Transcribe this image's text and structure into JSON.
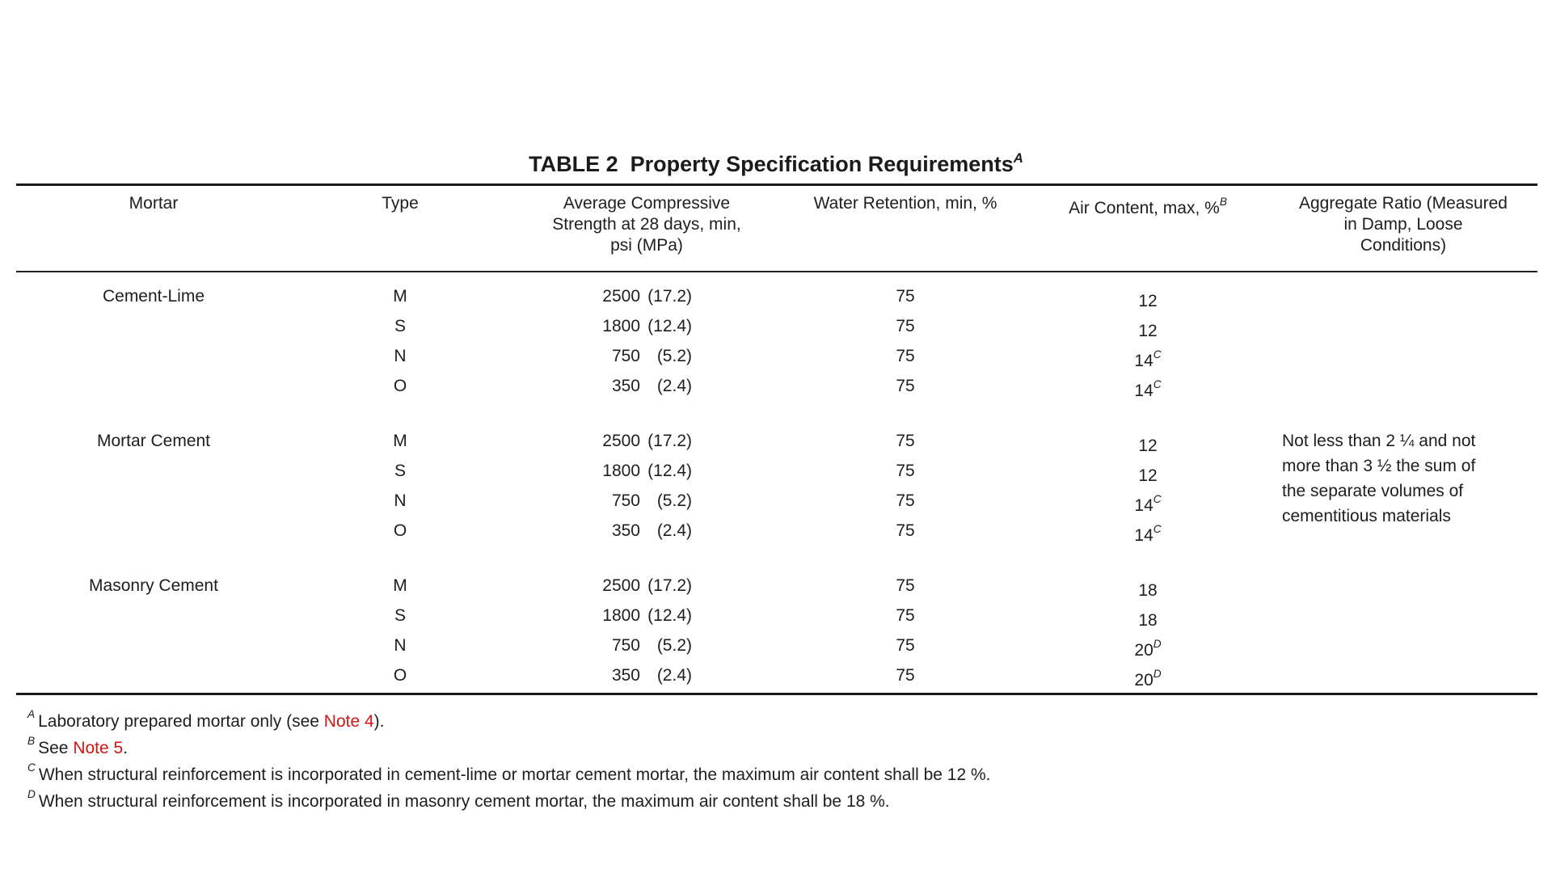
{
  "title": {
    "text": "TABLE 2  Property Specification Requirements",
    "sup": "A"
  },
  "colors": {
    "text": "#1e1e1e",
    "rule": "#1a1a1a",
    "note_link_red": "#d11414",
    "background": "#ffffff"
  },
  "table": {
    "headers": {
      "mortar": "Mortar",
      "type": "Type",
      "strength": "Average Compressive\nStrength at 28 days, min,\npsi (MPa)",
      "water": "Water Retention, min, %",
      "air": "Air Content, max, %",
      "air_sup": "B",
      "aggregate": "Aggregate Ratio (Measured\nin Damp, Loose\nConditions)"
    },
    "groups": [
      {
        "mortar": "Cement-Lime",
        "aggregate_note": "",
        "rows": [
          {
            "type": "M",
            "psi": "2500",
            "mpa": "(17.2)",
            "water": "75",
            "air": "12",
            "air_sup": ""
          },
          {
            "type": "S",
            "psi": "1800",
            "mpa": "(12.4)",
            "water": "75",
            "air": "12",
            "air_sup": ""
          },
          {
            "type": "N",
            "psi": "750",
            "mpa": "(5.2)",
            "water": "75",
            "air": "14",
            "air_sup": "C"
          },
          {
            "type": "O",
            "psi": "350",
            "mpa": "(2.4)",
            "water": "75",
            "air": "14",
            "air_sup": "C"
          }
        ]
      },
      {
        "mortar": "Mortar Cement",
        "aggregate_note": "Not less than 2 ¼ and not\nmore than 3 ½ the sum of\nthe separate volumes of\ncementitious materials",
        "rows": [
          {
            "type": "M",
            "psi": "2500",
            "mpa": "(17.2)",
            "water": "75",
            "air": "12",
            "air_sup": ""
          },
          {
            "type": "S",
            "psi": "1800",
            "mpa": "(12.4)",
            "water": "75",
            "air": "12",
            "air_sup": ""
          },
          {
            "type": "N",
            "psi": "750",
            "mpa": "(5.2)",
            "water": "75",
            "air": "14",
            "air_sup": "C"
          },
          {
            "type": "O",
            "psi": "350",
            "mpa": "(2.4)",
            "water": "75",
            "air": "14",
            "air_sup": "C"
          }
        ]
      },
      {
        "mortar": "Masonry Cement",
        "aggregate_note": "",
        "rows": [
          {
            "type": "M",
            "psi": "2500",
            "mpa": "(17.2)",
            "water": "75",
            "air": "18",
            "air_sup": ""
          },
          {
            "type": "S",
            "psi": "1800",
            "mpa": "(12.4)",
            "water": "75",
            "air": "18",
            "air_sup": ""
          },
          {
            "type": "N",
            "psi": "750",
            "mpa": "(5.2)",
            "water": "75",
            "air": "20",
            "air_sup": "D"
          },
          {
            "type": "O",
            "psi": "350",
            "mpa": "(2.4)",
            "water": "75",
            "air": "20",
            "air_sup": "D"
          }
        ]
      }
    ]
  },
  "footnotes": [
    {
      "sup": "A",
      "pre": "Laboratory prepared mortar only (see ",
      "link": "Note 4",
      "post": ")."
    },
    {
      "sup": "B",
      "pre": "See ",
      "link": "Note 5",
      "post": "."
    },
    {
      "sup": "C",
      "pre": "When structural reinforcement is incorporated in cement-lime or mortar cement mortar, the maximum air content shall be 12 %.",
      "link": "",
      "post": ""
    },
    {
      "sup": "D",
      "pre": "When structural reinforcement is incorporated in masonry cement mortar, the maximum air content shall be 18 %.",
      "link": "",
      "post": ""
    }
  ]
}
